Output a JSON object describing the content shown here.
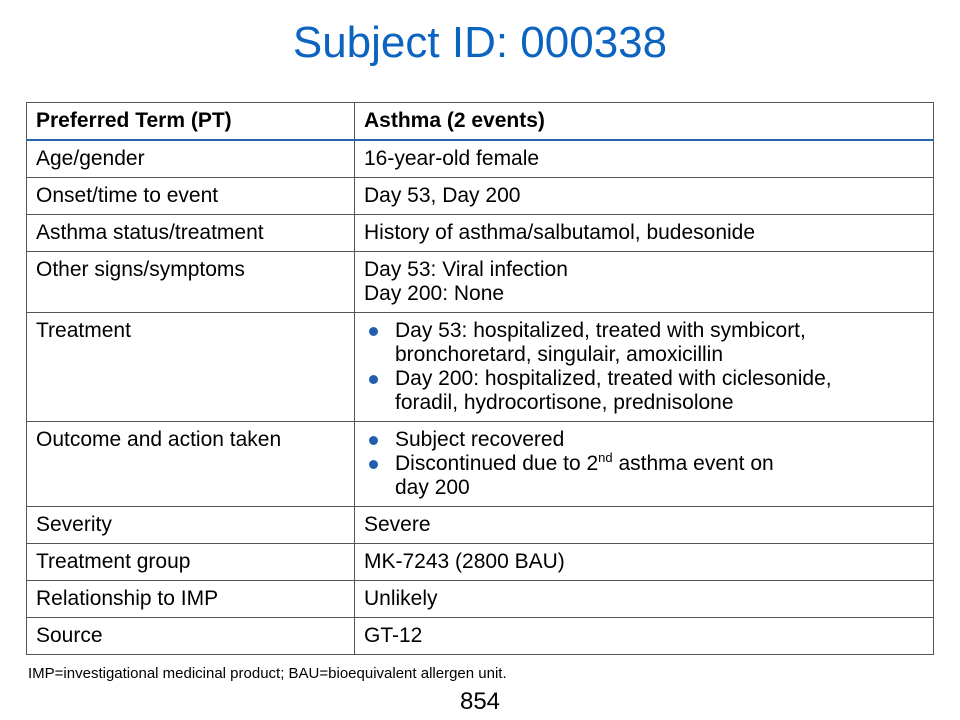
{
  "title": "Subject ID: 000338",
  "table": {
    "header": {
      "label": "Preferred Term (PT)",
      "value": "Asthma (2 events)"
    },
    "rows": {
      "age": {
        "label": "Age/gender",
        "value": "16-year-old female"
      },
      "onset": {
        "label": "Onset/time to event",
        "value": "Day 53, Day 200"
      },
      "asthma_status": {
        "label": "Asthma status/treatment",
        "value": "History of asthma/salbutamol, budesonide"
      },
      "other_signs": {
        "label": "Other signs/symptoms",
        "line1": "Day 53: Viral infection",
        "line2": "Day 200: None"
      },
      "treatment": {
        "label": "Treatment",
        "bullets": [
          {
            "line1": "Day 53: hospitalized, treated with symbicort,",
            "line2": "bronchoretard, singulair, amoxicillin"
          },
          {
            "line1": "Day 200: hospitalized, treated with ciclesonide,",
            "line2": "foradil, hydrocortisone, prednisolone"
          }
        ]
      },
      "outcome": {
        "label": "Outcome and action taken",
        "bullet1": "Subject recovered",
        "bullet2_pre": "Discontinued due to 2",
        "bullet2_sup": "nd",
        "bullet2_post": " asthma event on",
        "bullet2_line2": "day 200"
      },
      "severity": {
        "label": "Severity",
        "value": "Severe"
      },
      "group": {
        "label": "Treatment group",
        "value": "MK-7243 (2800 BAU)"
      },
      "relationship": {
        "label": "Relationship to IMP",
        "value": "Unlikely"
      },
      "source": {
        "label": "Source",
        "value": "GT-12"
      }
    }
  },
  "footnote": "IMP=investigational medicinal product; BAU=bioequivalent allergen unit.",
  "page_number": "854",
  "colors": {
    "title": "#0b64c0",
    "bullet": "#1f5fae",
    "header_rule": "#2a64b0"
  }
}
